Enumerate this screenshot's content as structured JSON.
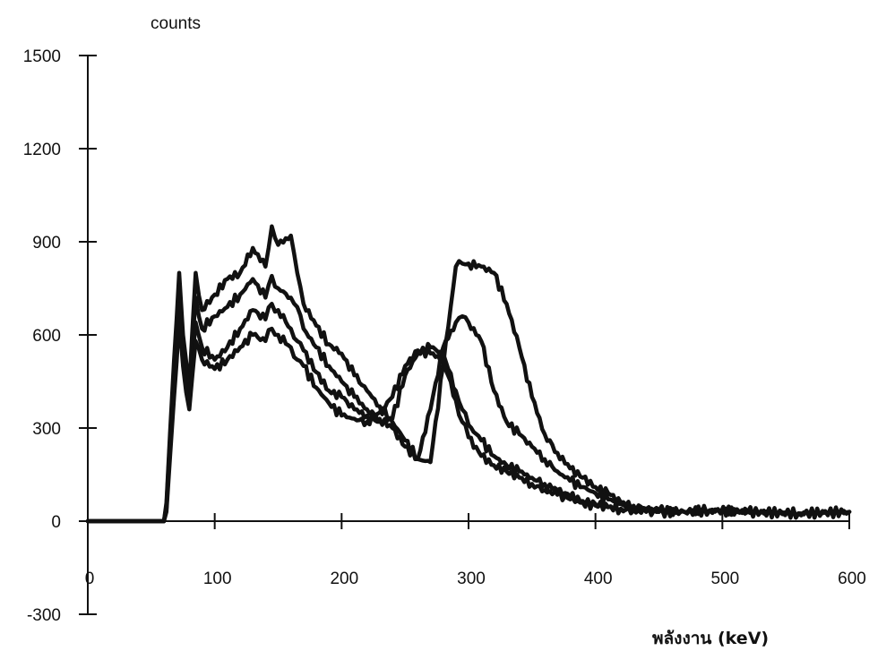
{
  "chart_data": {
    "type": "line",
    "title": "",
    "xlabel": "พลังงาน (keV)",
    "ylabel": "counts",
    "xlim": [
      0,
      600
    ],
    "ylim": [
      -300,
      1500
    ],
    "x_ticks": [
      "0",
      "100",
      "200",
      "300",
      "400",
      "500",
      "600"
    ],
    "y_ticks": [
      "1500",
      "1200",
      "900",
      "600",
      "300",
      "0",
      "-300"
    ],
    "grid": false,
    "series": [
      {
        "x": [
          0,
          60,
          62,
          65,
          68,
          72,
          75,
          80,
          85,
          90,
          100,
          110,
          120,
          130,
          140,
          145,
          150,
          160,
          165,
          170,
          180,
          190,
          200,
          210,
          220,
          230,
          240,
          250,
          260,
          270,
          280,
          290,
          295,
          300,
          310,
          320,
          330,
          340,
          350,
          360,
          370,
          380,
          390,
          400,
          410,
          420,
          430,
          440,
          450,
          470,
          490,
          520,
          560,
          600
        ],
        "y": [
          0,
          0,
          60,
          300,
          520,
          800,
          600,
          430,
          800,
          680,
          730,
          780,
          800,
          880,
          820,
          950,
          890,
          920,
          800,
          700,
          630,
          570,
          540,
          470,
          420,
          370,
          320,
          260,
          200,
          190,
          500,
          820,
          830,
          830,
          820,
          800,
          700,
          560,
          400,
          280,
          220,
          170,
          140,
          110,
          90,
          60,
          50,
          40,
          35,
          30,
          35,
          30,
          25,
          30
        ]
      },
      {
        "x": [
          0,
          60,
          62,
          65,
          68,
          72,
          75,
          80,
          85,
          90,
          100,
          110,
          120,
          130,
          140,
          145,
          150,
          160,
          165,
          170,
          180,
          190,
          200,
          210,
          220,
          230,
          240,
          250,
          260,
          270,
          280,
          290,
          295,
          300,
          310,
          320,
          330,
          340,
          350,
          360,
          370,
          380,
          390,
          400,
          410,
          420,
          430,
          440,
          450,
          470,
          490,
          520,
          560,
          600
        ],
        "y": [
          0,
          0,
          50,
          280,
          480,
          760,
          560,
          400,
          720,
          620,
          660,
          690,
          730,
          780,
          720,
          790,
          750,
          720,
          690,
          620,
          560,
          500,
          450,
          400,
          360,
          330,
          300,
          240,
          200,
          360,
          560,
          640,
          660,
          640,
          580,
          420,
          320,
          280,
          240,
          200,
          160,
          130,
          110,
          90,
          70,
          55,
          45,
          40,
          35,
          30,
          35,
          30,
          25,
          30
        ]
      },
      {
        "x": [
          0,
          60,
          62,
          65,
          68,
          72,
          75,
          80,
          85,
          90,
          100,
          110,
          120,
          130,
          140,
          145,
          150,
          160,
          165,
          170,
          180,
          190,
          200,
          210,
          220,
          230,
          240,
          250,
          260,
          270,
          280,
          290,
          295,
          300,
          310,
          320,
          330,
          340,
          350,
          360,
          370,
          380,
          390,
          400,
          410,
          420,
          430,
          440,
          450,
          470,
          490,
          520,
          560,
          600
        ],
        "y": [
          0,
          0,
          40,
          250,
          440,
          700,
          520,
          380,
          640,
          560,
          520,
          560,
          620,
          680,
          650,
          700,
          680,
          620,
          580,
          550,
          480,
          420,
          400,
          360,
          340,
          320,
          330,
          470,
          540,
          560,
          540,
          420,
          360,
          310,
          260,
          210,
          180,
          160,
          140,
          120,
          100,
          80,
          65,
          55,
          45,
          40,
          35,
          30,
          30,
          30,
          35,
          30,
          25,
          30
        ]
      },
      {
        "x": [
          0,
          60,
          62,
          65,
          68,
          72,
          75,
          80,
          85,
          90,
          100,
          110,
          120,
          130,
          140,
          145,
          150,
          160,
          165,
          170,
          180,
          190,
          200,
          210,
          220,
          230,
          240,
          250,
          260,
          270,
          280,
          290,
          295,
          300,
          310,
          320,
          330,
          340,
          350,
          360,
          370,
          380,
          390,
          400,
          410,
          420,
          430,
          440,
          450,
          470,
          490,
          520,
          560,
          600
        ],
        "y": [
          0,
          0,
          30,
          220,
          400,
          650,
          500,
          360,
          580,
          520,
          490,
          520,
          560,
          600,
          580,
          620,
          600,
          560,
          520,
          500,
          430,
          380,
          340,
          330,
          320,
          350,
          400,
          500,
          550,
          540,
          520,
          390,
          320,
          270,
          210,
          180,
          160,
          140,
          120,
          100,
          85,
          70,
          60,
          50,
          45,
          40,
          35,
          30,
          30,
          30,
          35,
          30,
          25,
          30
        ]
      }
    ]
  }
}
